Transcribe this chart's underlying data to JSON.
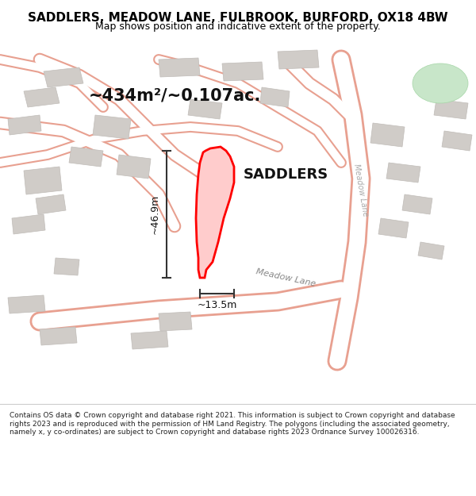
{
  "title": "SADDLERS, MEADOW LANE, FULBROOK, BURFORD, OX18 4BW",
  "subtitle": "Map shows position and indicative extent of the property.",
  "area_text": "~434m²/~0.107ac.",
  "property_label": "SADDLERS",
  "dim_vertical": "~46.9m",
  "dim_horizontal": "~13.5m",
  "road_label": "Meadow Lane",
  "background_color": "#f5f5f0",
  "map_bg": "#f5f5f0",
  "footer_text": "Contains OS data © Crown copyright and database right 2021. This information is subject to Crown copyright and database rights 2023 and is reproduced with the permission of HM Land Registry. The polygons (including the associated geometry, namely x, y co-ordinates) are subject to Crown copyright and database rights 2023 Ordnance Survey 100026316.",
  "building_color": "#d0ccc8",
  "building_edge": "#c0bcb8",
  "road_color": "#ffffff",
  "road_edge": "#e8a090",
  "property_fill": "#ffcccc",
  "property_edge": "#ff0000",
  "green_area": "#d4edda"
}
